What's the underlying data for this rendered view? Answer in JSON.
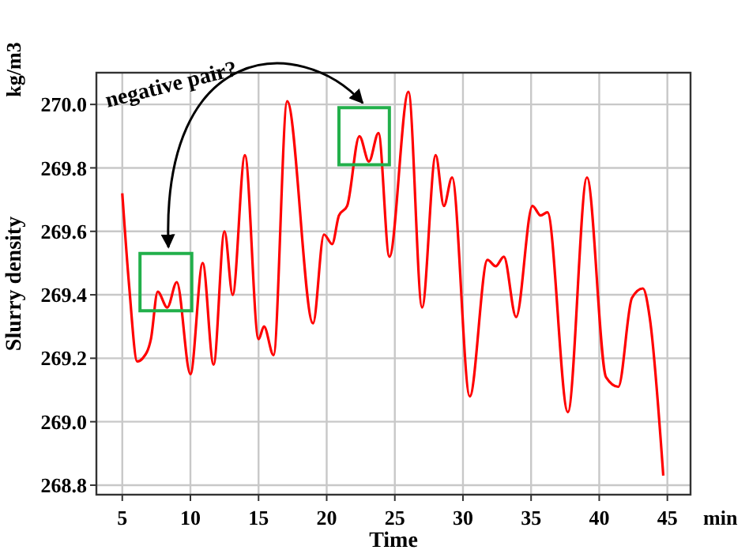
{
  "chart_data": {
    "type": "line",
    "ylabel": "Slurry density",
    "xlabel": "Time",
    "annotations": [
      "negative pair?",
      "kg/m3",
      "min"
    ],
    "x": [
      5,
      5.5,
      6.1,
      6.5,
      7.1,
      7.6,
      8.3,
      9.0,
      10.0,
      10.9,
      11.7,
      12.5,
      13.1,
      14.0,
      15.0,
      15.4,
      16.1,
      17.1,
      19.0,
      19.8,
      20.4,
      20.9,
      21.5,
      22.4,
      23.1,
      23.8,
      24.6,
      26.0,
      27.0,
      28.0,
      28.6,
      29.2,
      30.5,
      31.8,
      32.4,
      33.0,
      33.9,
      35.1,
      35.7,
      36.2,
      37.7,
      39.1,
      40.5,
      41.4,
      42.4,
      43.2,
      43.7,
      44.7
    ],
    "series": [
      {
        "color": "#ff0000",
        "values": [
          269.72,
          269.43,
          269.19,
          269.2,
          269.26,
          269.41,
          269.36,
          269.44,
          269.15,
          269.5,
          269.18,
          269.6,
          269.4,
          269.84,
          269.26,
          269.3,
          269.21,
          270.01,
          269.31,
          269.59,
          269.56,
          269.65,
          269.68,
          269.9,
          269.82,
          269.91,
          269.52,
          270.04,
          269.36,
          269.84,
          269.68,
          269.77,
          269.08,
          269.51,
          269.49,
          269.52,
          269.33,
          269.68,
          269.65,
          269.66,
          269.03,
          269.77,
          269.14,
          269.11,
          269.39,
          269.42,
          269.33,
          268.83
        ]
      }
    ],
    "xlim": [
      3.1,
      46.7
    ],
    "ylim": [
      268.77,
      270.1
    ],
    "xticks": [
      5,
      10,
      15,
      20,
      25,
      30,
      35,
      40,
      45
    ],
    "yticks": [
      {
        "value": 268.8,
        "label": "268.8"
      },
      {
        "value": 269.0,
        "label": "269.0"
      },
      {
        "value": 269.2,
        "label": "269.2"
      },
      {
        "value": 269.4,
        "label": "269.4"
      },
      {
        "value": 269.6,
        "label": "269.6"
      },
      {
        "value": 269.8,
        "label": "269.8"
      },
      {
        "value": 270.0,
        "label": "270.0"
      }
    ],
    "grid": true,
    "line_style": "solid",
    "marker": "none"
  }
}
